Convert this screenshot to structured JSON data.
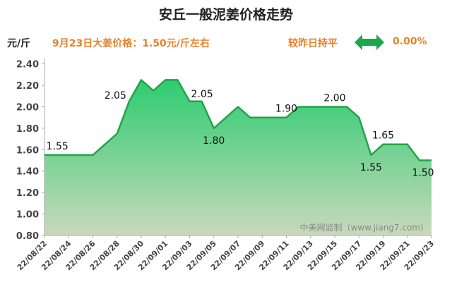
{
  "header": {
    "title": "安丘一般泥姜价格走势",
    "unit": "元/斤",
    "price_note": "9月23日大姜价格：1.50元/斤左右",
    "compare_label": "较昨日持平",
    "change": "0.00%",
    "arrow_icon": "double-arrow-icon",
    "accent_color": "#e8822a",
    "arrow_color": "#1aa84b"
  },
  "chart_data": {
    "type": "area",
    "x": [
      "22/08/22",
      "22/08/23",
      "22/08/24",
      "22/08/25",
      "22/08/26",
      "22/08/27",
      "22/08/28",
      "22/08/29",
      "22/08/30",
      "22/08/31",
      "22/09/01",
      "22/09/02",
      "22/09/03",
      "22/09/04",
      "22/09/05",
      "22/09/06",
      "22/09/07",
      "22/09/08",
      "22/09/09",
      "22/09/10",
      "22/09/11",
      "22/09/12",
      "22/09/13",
      "22/09/14",
      "22/09/15",
      "22/09/16",
      "22/09/17",
      "22/09/18",
      "22/09/19",
      "22/09/20",
      "22/09/21",
      "22/09/22",
      "22/09/23"
    ],
    "values": [
      1.55,
      1.55,
      1.55,
      1.55,
      1.55,
      1.65,
      1.75,
      2.05,
      2.25,
      2.15,
      2.25,
      2.25,
      2.05,
      2.05,
      1.8,
      1.9,
      2.0,
      1.9,
      1.9,
      1.9,
      1.9,
      2.0,
      2.0,
      2.0,
      2.0,
      2.0,
      1.9,
      1.55,
      1.65,
      1.65,
      1.65,
      1.5,
      1.5
    ],
    "x_tick_labels": [
      "22/08/22",
      "22/08/24",
      "22/08/26",
      "22/08/28",
      "22/08/30",
      "22/09/01",
      "22/09/03",
      "22/09/05",
      "22/09/07",
      "22/09/09",
      "22/09/11",
      "22/09/13",
      "22/09/15",
      "22/09/17",
      "22/09/19",
      "22/09/21",
      "22/09/23"
    ],
    "y_ticks": [
      "0.80",
      "1.00",
      "1.20",
      "1.40",
      "1.60",
      "1.80",
      "2.00",
      "2.20",
      "2.40"
    ],
    "ylim": [
      0.8,
      2.45
    ],
    "data_labels": [
      {
        "index": 2,
        "text": "1.55",
        "pos": "above"
      },
      {
        "index": 7,
        "text": "2.05",
        "pos": "left"
      },
      {
        "index": 12,
        "text": "2.05",
        "pos": "right"
      },
      {
        "index": 14,
        "text": "1.80",
        "pos": "below"
      },
      {
        "index": 20,
        "text": "1.90",
        "pos": "above"
      },
      {
        "index": 24,
        "text": "2.00",
        "pos": "above"
      },
      {
        "index": 27,
        "text": "1.55",
        "pos": "below"
      },
      {
        "index": 28,
        "text": "1.65",
        "pos": "above"
      },
      {
        "index": 32,
        "text": "1.50",
        "pos": "below"
      }
    ],
    "watermark": "中美网监制（www.jiang7.com）",
    "line_color": "#22a447",
    "fill_top_color": "#2ecc71",
    "fill_bottom_color": "#c8d9bc",
    "grid": false
  }
}
